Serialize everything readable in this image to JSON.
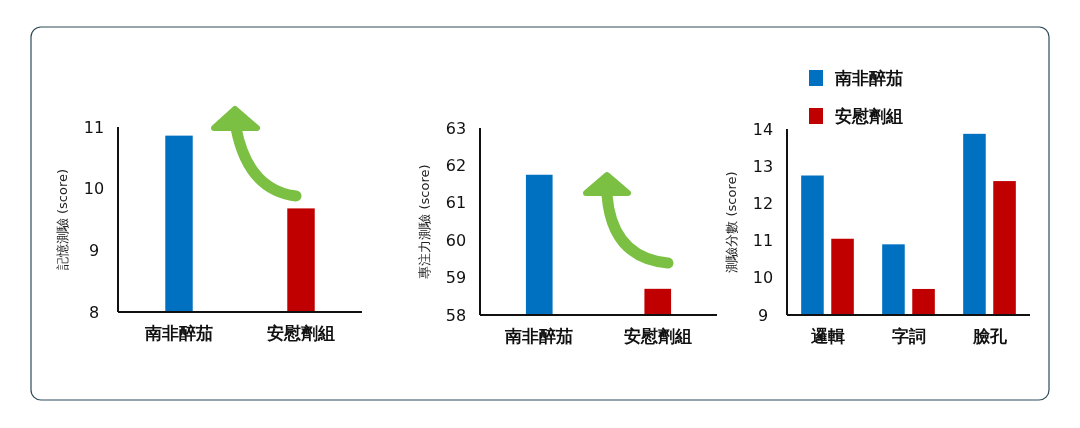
{
  "chart_data": [
    {
      "type": "bar",
      "ylabel": "記憶測驗 (score)",
      "categories": [
        "南非醉茄",
        "安慰劑組"
      ],
      "values": [
        10.86,
        9.68
      ],
      "colors": [
        "#0070c0",
        "#c00000"
      ],
      "ylim": [
        8,
        11
      ],
      "yticks": [
        8,
        9,
        10,
        11
      ],
      "grid": false,
      "legend": false
    },
    {
      "type": "bar",
      "ylabel": "專注力測驗 (score)",
      "categories": [
        "南非醉茄",
        "安慰劑組"
      ],
      "values": [
        61.75,
        58.7
      ],
      "colors": [
        "#0070c0",
        "#c00000"
      ],
      "ylim": [
        58,
        63
      ],
      "yticks": [
        58,
        59,
        60,
        61,
        62,
        63
      ],
      "grid": false,
      "legend": false
    },
    {
      "type": "bar",
      "ylabel": "測驗分數 (score)",
      "categories": [
        "邏輯",
        "字詞",
        "臉孔"
      ],
      "series": [
        {
          "name": "南非醉茄",
          "color": "#0070c0",
          "values": [
            12.75,
            10.9,
            13.87
          ]
        },
        {
          "name": "安慰劑組",
          "color": "#c00000",
          "values": [
            11.05,
            9.7,
            12.6
          ]
        }
      ],
      "ylim": [
        9,
        14
      ],
      "yticks": [
        9,
        10,
        11,
        12,
        13,
        14
      ],
      "grid": false,
      "legend": "top left"
    }
  ]
}
